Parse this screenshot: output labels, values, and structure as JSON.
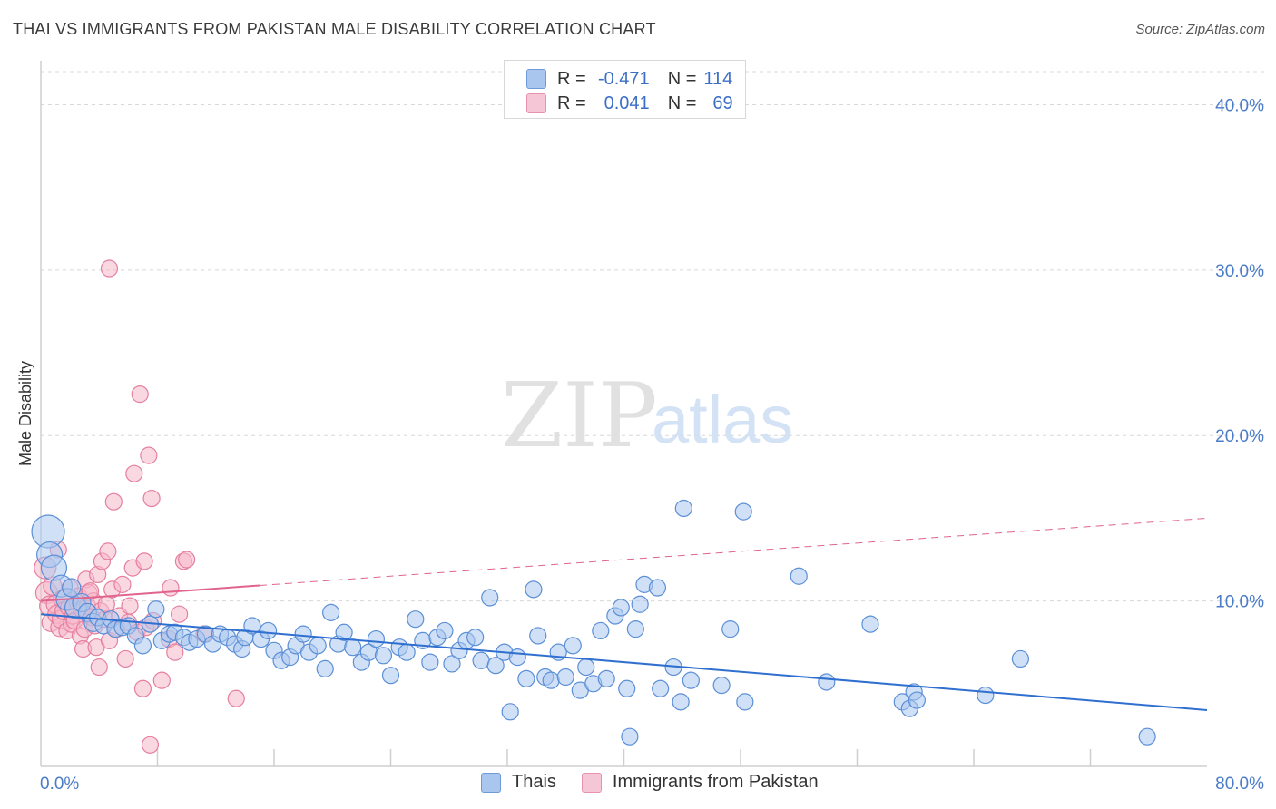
{
  "header": {
    "title": "THAI VS IMMIGRANTS FROM PAKISTAN MALE DISABILITY CORRELATION CHART",
    "source": "Source: ZipAtlas.com"
  },
  "watermark": {
    "zip": "ZIP",
    "atlas": "atlas"
  },
  "legend": {
    "rows": [
      {
        "r_label": "R =",
        "r_value": "-0.471",
        "n_label": "N =",
        "n_value": "114",
        "color": "#a9c6ee"
      },
      {
        "r_label": "R =",
        "r_value": "0.041",
        "n_label": "N =",
        "n_value": "69",
        "color": "#f5b8cb"
      }
    ]
  },
  "bottom_legend": [
    {
      "label": "Thais",
      "color": "#a9c6ee"
    },
    {
      "label": "Immigrants from Pakistan",
      "color": "#f5b8cb"
    }
  ],
  "colors": {
    "thai_fill": "#a9c6ee",
    "thai_stroke": "#5b8fd6",
    "thai_line": "#2f6fcf",
    "pak_fill": "#f5b8cb",
    "pak_stroke": "#e57fa0",
    "pak_line": "#e0648e",
    "grid": "#d8d8d8",
    "tick_text": "#4a7cc9"
  },
  "chart_data": {
    "type": "scatter",
    "title": "THAI VS IMMIGRANTS FROM PAKISTAN MALE DISABILITY CORRELATION CHART",
    "xlabel": "",
    "ylabel": "Male Disability",
    "xlim": [
      0,
      80
    ],
    "ylim": [
      0,
      42
    ],
    "x_tick_labels": [
      "0.0%",
      "80.0%"
    ],
    "y_ticks": [
      10,
      20,
      30,
      40
    ],
    "y_tick_labels": [
      "10.0%",
      "20.0%",
      "30.0%",
      "40.0%"
    ],
    "grid": true,
    "series": [
      {
        "name": "Thais",
        "r": -0.471,
        "n": 114,
        "trend": {
          "x": [
            0,
            80
          ],
          "y": [
            9.2,
            3.4
          ]
        },
        "points": [
          [
            0.5,
            14.2,
            18
          ],
          [
            0.6,
            12.8,
            14
          ],
          [
            0.9,
            12.0,
            14
          ],
          [
            1.4,
            10.9,
            12
          ],
          [
            1.8,
            10.1,
            12
          ],
          [
            2.1,
            10.8,
            10
          ],
          [
            2.4,
            9.6,
            12
          ],
          [
            2.8,
            9.9,
            10
          ],
          [
            3.2,
            9.3,
            10
          ],
          [
            3.6,
            8.7,
            10
          ],
          [
            3.9,
            9.0,
            9
          ],
          [
            4.3,
            8.5,
            9
          ],
          [
            4.8,
            8.9,
            9
          ],
          [
            5.1,
            8.3,
            9
          ],
          [
            5.6,
            8.4,
            9
          ],
          [
            6.0,
            8.5,
            9
          ],
          [
            6.5,
            7.9,
            9
          ],
          [
            7.0,
            7.3,
            9
          ],
          [
            7.5,
            8.6,
            9
          ],
          [
            7.9,
            9.5,
            9
          ],
          [
            8.3,
            7.6,
            9
          ],
          [
            8.8,
            8.0,
            9
          ],
          [
            9.2,
            8.1,
            9
          ],
          [
            9.8,
            7.8,
            9
          ],
          [
            10.2,
            7.5,
            9
          ],
          [
            10.7,
            7.7,
            9
          ],
          [
            11.3,
            8.0,
            9
          ],
          [
            11.8,
            7.4,
            9
          ],
          [
            12.3,
            8.0,
            9
          ],
          [
            12.8,
            7.8,
            9
          ],
          [
            13.3,
            7.4,
            9
          ],
          [
            13.8,
            7.1,
            9
          ],
          [
            14.0,
            7.8,
            9
          ],
          [
            14.5,
            8.5,
            9
          ],
          [
            15.1,
            7.7,
            9
          ],
          [
            15.6,
            8.2,
            9
          ],
          [
            16.0,
            7.0,
            9
          ],
          [
            16.5,
            6.4,
            9
          ],
          [
            17.1,
            6.6,
            9
          ],
          [
            17.5,
            7.3,
            9
          ],
          [
            18.0,
            8.0,
            9
          ],
          [
            18.4,
            6.9,
            9
          ],
          [
            19.0,
            7.3,
            9
          ],
          [
            19.5,
            5.9,
            9
          ],
          [
            19.9,
            9.3,
            9
          ],
          [
            20.4,
            7.4,
            9
          ],
          [
            20.8,
            8.1,
            9
          ],
          [
            21.4,
            7.2,
            9
          ],
          [
            22.0,
            6.3,
            9
          ],
          [
            22.5,
            6.9,
            9
          ],
          [
            23.0,
            7.7,
            9
          ],
          [
            23.5,
            6.7,
            9
          ],
          [
            24.0,
            5.5,
            9
          ],
          [
            24.6,
            7.2,
            9
          ],
          [
            25.1,
            6.9,
            9
          ],
          [
            25.7,
            8.9,
            9
          ],
          [
            26.2,
            7.6,
            9
          ],
          [
            26.7,
            6.3,
            9
          ],
          [
            27.2,
            7.8,
            9
          ],
          [
            27.7,
            8.2,
            9
          ],
          [
            28.2,
            6.2,
            9
          ],
          [
            28.7,
            7.0,
            9
          ],
          [
            29.2,
            7.6,
            9
          ],
          [
            29.8,
            7.8,
            9
          ],
          [
            30.2,
            6.4,
            9
          ],
          [
            30.8,
            10.2,
            9
          ],
          [
            31.2,
            6.1,
            9
          ],
          [
            31.8,
            6.9,
            9
          ],
          [
            32.2,
            3.3,
            9
          ],
          [
            32.7,
            6.6,
            9
          ],
          [
            33.3,
            5.3,
            9
          ],
          [
            33.8,
            10.7,
            9
          ],
          [
            34.1,
            7.9,
            9
          ],
          [
            34.6,
            5.4,
            9
          ],
          [
            35.0,
            5.2,
            9
          ],
          [
            35.5,
            6.9,
            9
          ],
          [
            36.0,
            5.4,
            9
          ],
          [
            36.5,
            7.3,
            9
          ],
          [
            37.0,
            4.6,
            9
          ],
          [
            37.4,
            6.0,
            9
          ],
          [
            37.9,
            5.0,
            9
          ],
          [
            38.4,
            8.2,
            9
          ],
          [
            38.8,
            5.3,
            9
          ],
          [
            39.4,
            9.1,
            9
          ],
          [
            39.8,
            9.6,
            9
          ],
          [
            40.2,
            4.7,
            9
          ],
          [
            40.4,
            1.8,
            9
          ],
          [
            40.8,
            8.3,
            9
          ],
          [
            41.1,
            9.8,
            9
          ],
          [
            41.4,
            11.0,
            9
          ],
          [
            42.3,
            10.8,
            9
          ],
          [
            42.5,
            4.7,
            9
          ],
          [
            43.4,
            6.0,
            9
          ],
          [
            43.9,
            3.9,
            9
          ],
          [
            44.1,
            15.6,
            9
          ],
          [
            44.6,
            5.2,
            9
          ],
          [
            46.7,
            4.9,
            9
          ],
          [
            47.3,
            8.3,
            9
          ],
          [
            48.2,
            15.4,
            9
          ],
          [
            48.3,
            3.9,
            9
          ],
          [
            52.0,
            11.5,
            9
          ],
          [
            53.9,
            5.1,
            9
          ],
          [
            56.9,
            8.6,
            9
          ],
          [
            59.1,
            3.9,
            9
          ],
          [
            59.6,
            3.5,
            9
          ],
          [
            59.9,
            4.5,
            9
          ],
          [
            60.1,
            4.0,
            9
          ],
          [
            64.8,
            4.3,
            9
          ],
          [
            67.2,
            6.5,
            9
          ],
          [
            75.9,
            1.8,
            9
          ]
        ]
      },
      {
        "name": "Immigrants from Pakistan",
        "r": 0.041,
        "n": 69,
        "trend": {
          "x": [
            0,
            80
          ],
          "y": [
            10.0,
            15.0
          ]
        },
        "trend_solid_until_x": 15,
        "points": [
          [
            0.3,
            12.0,
            12
          ],
          [
            0.4,
            10.5,
            12
          ],
          [
            0.6,
            9.7,
            11
          ],
          [
            0.7,
            8.7,
            10
          ],
          [
            0.8,
            10.9,
            10
          ],
          [
            1.0,
            9.8,
            10
          ],
          [
            1.1,
            9.2,
            10
          ],
          [
            1.3,
            8.4,
            10
          ],
          [
            1.4,
            8.9,
            10
          ],
          [
            1.5,
            10.1,
            10
          ],
          [
            1.6,
            9.4,
            10
          ],
          [
            1.8,
            8.2,
            9
          ],
          [
            1.9,
            9.6,
            9
          ],
          [
            2.0,
            10.8,
            9
          ],
          [
            2.1,
            8.6,
            9
          ],
          [
            2.2,
            9.1,
            9
          ],
          [
            2.3,
            8.8,
            9
          ],
          [
            2.5,
            9.9,
            9
          ],
          [
            2.6,
            10.3,
            9
          ],
          [
            2.7,
            7.9,
            9
          ],
          [
            2.8,
            9.5,
            9
          ],
          [
            2.9,
            7.1,
            9
          ],
          [
            3.0,
            8.3,
            9
          ],
          [
            3.1,
            11.3,
            9
          ],
          [
            3.2,
            9.7,
            9
          ],
          [
            3.3,
            10.5,
            9
          ],
          [
            3.5,
            9.0,
            9
          ],
          [
            3.6,
            10.0,
            9
          ],
          [
            3.7,
            8.5,
            9
          ],
          [
            3.8,
            7.2,
            9
          ],
          [
            3.9,
            11.6,
            9
          ],
          [
            4.0,
            6.0,
            9
          ],
          [
            4.1,
            9.4,
            9
          ],
          [
            4.2,
            12.4,
            9
          ],
          [
            4.4,
            8.9,
            9
          ],
          [
            4.5,
            9.8,
            9
          ],
          [
            4.6,
            13.0,
            9
          ],
          [
            4.7,
            7.6,
            9
          ],
          [
            4.9,
            10.7,
            9
          ],
          [
            5.0,
            16.0,
            9
          ],
          [
            5.2,
            8.3,
            9
          ],
          [
            5.4,
            9.1,
            9
          ],
          [
            5.6,
            11.0,
            9
          ],
          [
            5.8,
            6.5,
            9
          ],
          [
            6.0,
            8.7,
            9
          ],
          [
            6.1,
            9.7,
            9
          ],
          [
            6.3,
            12.0,
            9
          ],
          [
            6.4,
            17.7,
            9
          ],
          [
            6.6,
            8.1,
            9
          ],
          [
            6.8,
            22.5,
            9
          ],
          [
            7.0,
            4.7,
            9
          ],
          [
            7.1,
            12.4,
            9
          ],
          [
            7.2,
            8.4,
            9
          ],
          [
            7.4,
            18.8,
            9
          ],
          [
            7.5,
            1.3,
            9
          ],
          [
            7.6,
            16.2,
            9
          ],
          [
            7.7,
            8.8,
            9
          ],
          [
            8.3,
            5.2,
            9
          ],
          [
            8.8,
            7.7,
            9
          ],
          [
            8.9,
            10.8,
            9
          ],
          [
            9.2,
            6.9,
            9
          ],
          [
            9.5,
            9.2,
            9
          ],
          [
            9.8,
            12.4,
            9
          ],
          [
            10.0,
            12.5,
            9
          ],
          [
            11.2,
            8.0,
            9
          ],
          [
            13.4,
            4.1,
            9
          ],
          [
            4.7,
            30.1,
            9
          ],
          [
            3.4,
            10.6,
            9
          ],
          [
            1.2,
            13.1,
            9
          ]
        ]
      }
    ]
  }
}
